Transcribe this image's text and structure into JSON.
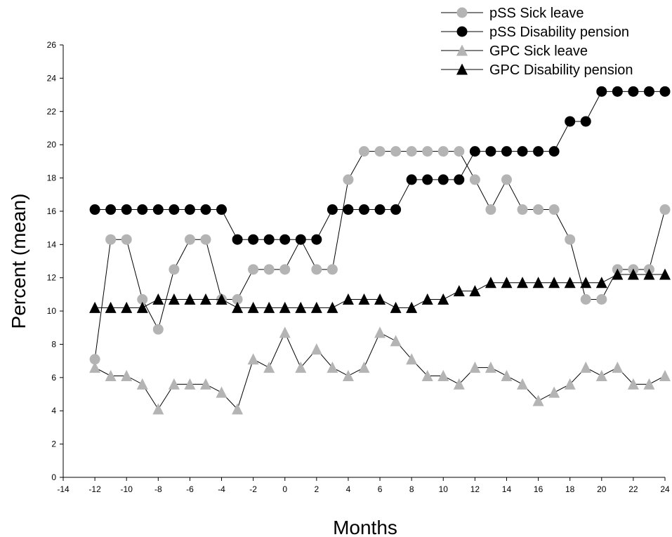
{
  "chart_data": {
    "type": "line",
    "title": "",
    "xlabel": "Months",
    "ylabel": "Percent (mean)",
    "xlim": [
      -14,
      24
    ],
    "ylim": [
      0,
      26
    ],
    "xticks": [
      -14,
      -12,
      -10,
      -8,
      -6,
      -4,
      -2,
      0,
      2,
      4,
      6,
      8,
      10,
      12,
      14,
      16,
      18,
      20,
      22,
      24
    ],
    "yticks": [
      0,
      2,
      4,
      6,
      8,
      10,
      12,
      14,
      16,
      18,
      20,
      22,
      24,
      26
    ],
    "grid": false,
    "legend_position": "top-right",
    "x": [
      -12,
      -11,
      -10,
      -9,
      -8,
      -7,
      -6,
      -5,
      -4,
      -3,
      -2,
      -1,
      0,
      1,
      2,
      3,
      4,
      5,
      6,
      7,
      8,
      9,
      10,
      11,
      12,
      13,
      14,
      15,
      16,
      17,
      18,
      19,
      20,
      21,
      22,
      23,
      24
    ],
    "series": [
      {
        "name": "pSS Sick leave",
        "marker": "circle",
        "color": "#b4b4b4",
        "values": [
          7.1,
          14.3,
          14.3,
          10.7,
          8.9,
          12.5,
          14.3,
          14.3,
          10.7,
          10.7,
          12.5,
          12.5,
          12.5,
          14.3,
          12.5,
          12.5,
          17.9,
          19.6,
          19.6,
          19.6,
          19.6,
          19.6,
          19.6,
          19.6,
          17.9,
          16.1,
          17.9,
          16.1,
          16.1,
          16.1,
          14.3,
          10.7,
          10.7,
          12.5,
          12.5,
          12.5,
          16.1
        ]
      },
      {
        "name": "pSS Disability pension",
        "marker": "circle",
        "color": "#000000",
        "values": [
          16.1,
          16.1,
          16.1,
          16.1,
          16.1,
          16.1,
          16.1,
          16.1,
          16.1,
          14.3,
          14.3,
          14.3,
          14.3,
          14.3,
          14.3,
          16.1,
          16.1,
          16.1,
          16.1,
          16.1,
          17.9,
          17.9,
          17.9,
          17.9,
          19.6,
          19.6,
          19.6,
          19.6,
          19.6,
          19.6,
          21.4,
          21.4,
          23.2,
          23.2,
          23.2,
          23.2,
          23.2
        ]
      },
      {
        "name": "GPC Sick leave",
        "marker": "triangle",
        "color": "#b4b4b4",
        "values": [
          6.6,
          6.1,
          6.1,
          5.6,
          4.1,
          5.6,
          5.6,
          5.6,
          5.1,
          4.1,
          7.1,
          6.6,
          8.7,
          6.6,
          7.7,
          6.6,
          6.1,
          6.6,
          8.7,
          8.2,
          7.1,
          6.1,
          6.1,
          5.6,
          6.6,
          6.6,
          6.1,
          5.6,
          4.6,
          5.1,
          5.6,
          6.6,
          6.1,
          6.6,
          5.6,
          5.6,
          6.1
        ]
      },
      {
        "name": "GPC Disability pension",
        "marker": "triangle",
        "color": "#000000",
        "values": [
          10.2,
          10.2,
          10.2,
          10.2,
          10.7,
          10.7,
          10.7,
          10.7,
          10.7,
          10.2,
          10.2,
          10.2,
          10.2,
          10.2,
          10.2,
          10.2,
          10.7,
          10.7,
          10.7,
          10.2,
          10.2,
          10.7,
          10.7,
          11.2,
          11.2,
          11.7,
          11.7,
          11.7,
          11.7,
          11.7,
          11.7,
          11.7,
          11.7,
          12.2,
          12.2,
          12.2,
          12.2
        ]
      }
    ]
  }
}
